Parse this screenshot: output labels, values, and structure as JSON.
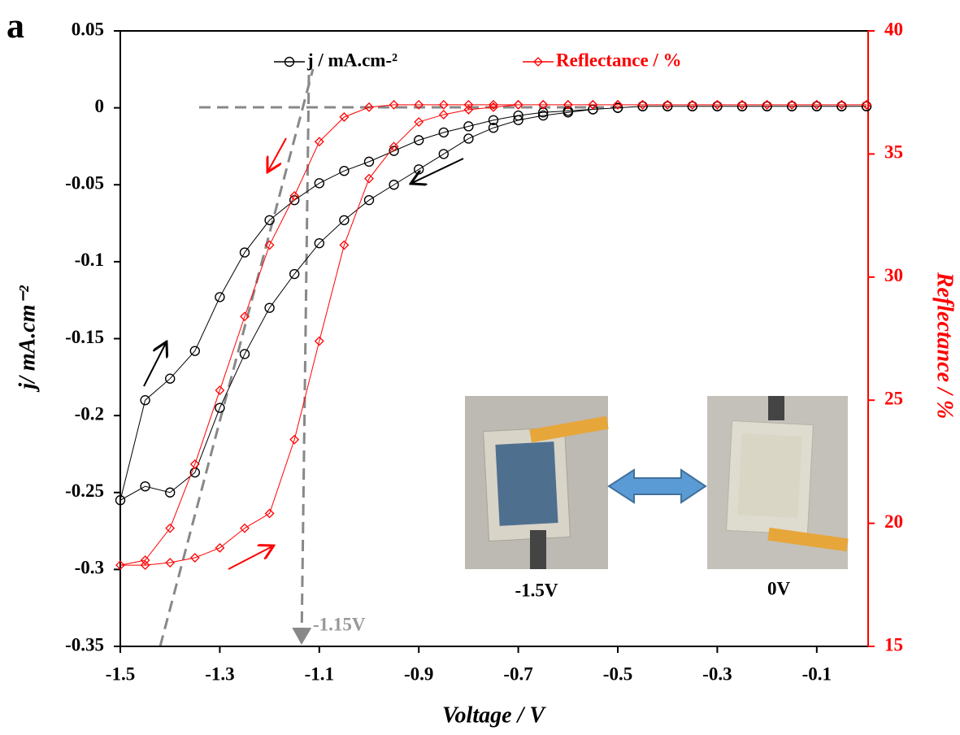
{
  "panel_label": "a",
  "chart_data": {
    "type": "line",
    "xlabel": "Voltage / V",
    "ylabel": "j/ mA.cm⁻²",
    "y2label": "Reflectance / %",
    "xlim": [
      -1.5,
      0
    ],
    "xticks": [
      -1.5,
      -1.3,
      -1.1,
      -0.9,
      -0.7,
      -0.5,
      -0.3,
      -0.1
    ],
    "ylim": [
      -0.35,
      0.05
    ],
    "yticks": [
      -0.35,
      -0.3,
      -0.25,
      -0.2,
      -0.15,
      -0.1,
      -0.05,
      0,
      0.05
    ],
    "y2lim": [
      15,
      40
    ],
    "y2ticks": [
      15,
      20,
      25,
      30,
      35,
      40
    ],
    "y2color": "#ff0000",
    "x": [
      0,
      -0.05,
      -0.1,
      -0.15,
      -0.2,
      -0.25,
      -0.3,
      -0.35,
      -0.4,
      -0.45,
      -0.5,
      -0.55,
      -0.6,
      -0.65,
      -0.7,
      -0.75,
      -0.8,
      -0.85,
      -0.9,
      -0.95,
      -1.0,
      -1.05,
      -1.1,
      -1.15,
      -1.2,
      -1.25,
      -1.3,
      -1.35,
      -1.4,
      -1.45,
      -1.5,
      -1.45,
      -1.4,
      -1.35,
      -1.3,
      -1.25,
      -1.2,
      -1.15,
      -1.1,
      -1.05,
      -1.0,
      -0.95,
      -0.9,
      -0.85,
      -0.8,
      -0.75,
      -0.7,
      -0.65,
      -0.6,
      -0.55,
      -0.5,
      -0.45,
      -0.4,
      -0.35,
      -0.3,
      -0.25,
      -0.2,
      -0.15,
      -0.1,
      -0.05,
      0
    ],
    "series": [
      {
        "name": "j / mA.cm-²",
        "color": "#000000",
        "marker": "circle",
        "values": [
          0.001,
          0.001,
          0.001,
          0.001,
          0.001,
          0.001,
          0.001,
          0.001,
          0.001,
          0.001,
          0.0,
          -0.001,
          -0.003,
          -0.005,
          -0.008,
          -0.013,
          -0.02,
          -0.03,
          -0.04,
          -0.05,
          -0.06,
          -0.073,
          -0.088,
          -0.108,
          -0.13,
          -0.16,
          -0.195,
          -0.237,
          -0.25,
          -0.246,
          -0.255,
          -0.19,
          -0.176,
          -0.158,
          -0.123,
          -0.094,
          -0.073,
          -0.06,
          -0.049,
          -0.041,
          -0.035,
          -0.028,
          -0.021,
          -0.016,
          -0.012,
          -0.008,
          -0.005,
          -0.003,
          -0.002,
          -0.001,
          0.0,
          0.001,
          0.001,
          0.001,
          0.001,
          0.001,
          0.001,
          0.001,
          0.001,
          0.001,
          0.001
        ]
      },
      {
        "name": "Reflectance / %",
        "color": "#ff0000",
        "marker": "diamond",
        "axis": "y2",
        "values": [
          37,
          37,
          37,
          37,
          37,
          37,
          37,
          37,
          37,
          37,
          37,
          37,
          37,
          37,
          37,
          37,
          37,
          37,
          37,
          37,
          36.9,
          36.5,
          35.5,
          33.3,
          31.3,
          28.4,
          25.4,
          22.4,
          19.8,
          18.5,
          18.3,
          18.3,
          18.4,
          18.6,
          19.0,
          19.8,
          20.4,
          23.4,
          27.4,
          31.3,
          34.0,
          35.3,
          36.3,
          36.6,
          36.8,
          36.9,
          37,
          37,
          37,
          37,
          37,
          37,
          37,
          37,
          37,
          37,
          37,
          37,
          37,
          37,
          37
        ]
      }
    ],
    "annotations": [
      "-1.15V",
      "-1.5V",
      "0V"
    ]
  }
}
